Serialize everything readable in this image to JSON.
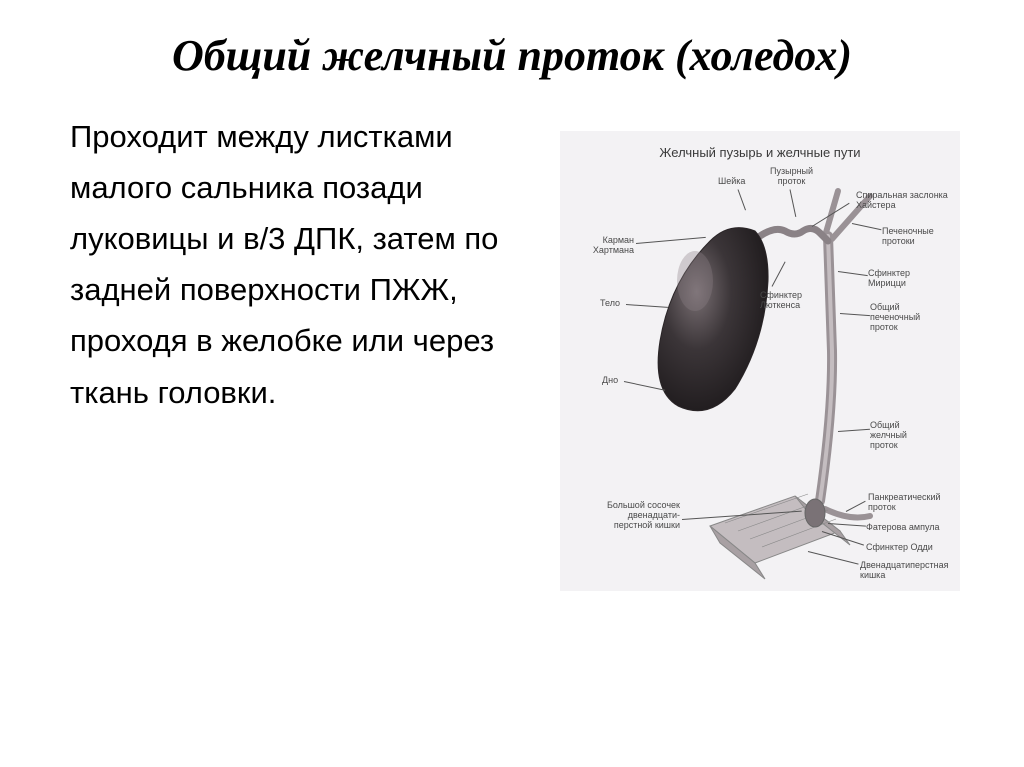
{
  "slide": {
    "title": "Общий желчный проток (холедох)",
    "body": "Проходит между листками малого сальника позади луковицы и в/3 ДПК, затем по задней поверхности ПЖЖ, проходя в желобке или через ткань головки."
  },
  "figure": {
    "title": "Желчный пузырь и желчные пути",
    "labels": {
      "karman": "Карман\nХартмана",
      "telo": "Тело",
      "dno": "Дно",
      "sheika": "Шейка",
      "puzyrny": "Пузырный\nпроток",
      "spiral": "Спиральная заслонка\nХайстера",
      "pechen": "Печеночные\nпротоки",
      "mirizzi": "Сфинктер\nМирицци",
      "obshchpech": "Общий\nпеченочный\nпроток",
      "lutkens": "Сфинктер\nЛюткенса",
      "obshchzhelch": "Общий\nжелчный\nпроток",
      "sosochek": "Большой сосочек\nдвенадцати-\nперстной кишки",
      "pankr": "Панкреатический\nпроток",
      "fater": "Фатерова ампула",
      "oddi": "Сфинктер Одди",
      "kishka": "Двенадцатиперстная\nкишка"
    },
    "colors": {
      "background": "#f3f2f4",
      "text": "#4a4a4a",
      "gallbladder_fill": "#2e2a2c",
      "gallbladder_highlight": "#6d6568",
      "duct": "#9a9296",
      "leader": "#555555"
    },
    "font_size_title": 13,
    "font_size_label": 9
  }
}
